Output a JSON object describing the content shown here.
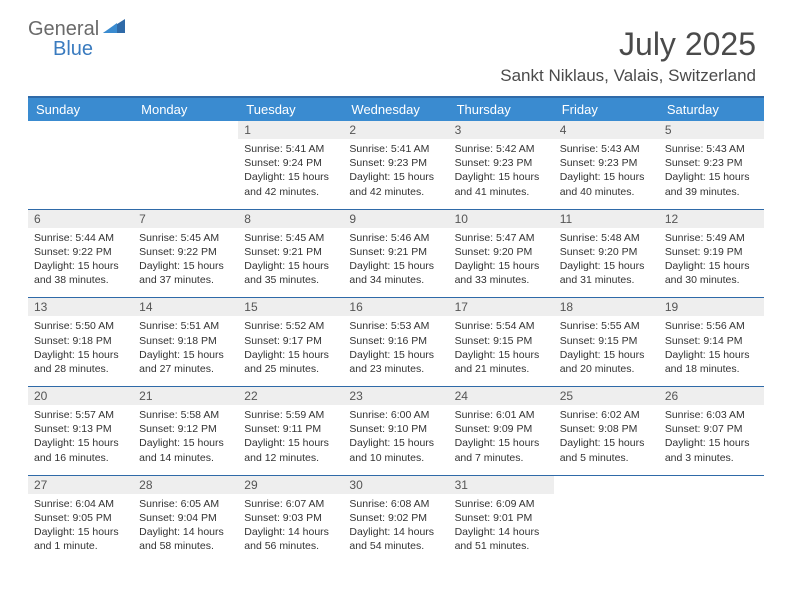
{
  "logo": {
    "text1": "General",
    "text2": "Blue"
  },
  "title": "July 2025",
  "subtitle": "Sankt Niklaus, Valais, Switzerland",
  "colors": {
    "header_bg": "#3a8bd0",
    "header_border": "#2f6aa8",
    "daynum_bg": "#eeeeee",
    "text": "#333333",
    "logo_gray": "#6a6a6a",
    "logo_blue": "#3a7bbf"
  },
  "weekdays": [
    "Sunday",
    "Monday",
    "Tuesday",
    "Wednesday",
    "Thursday",
    "Friday",
    "Saturday"
  ],
  "weeks": [
    [
      {
        "empty": true
      },
      {
        "empty": true
      },
      {
        "num": "1",
        "sunrise": "Sunrise: 5:41 AM",
        "sunset": "Sunset: 9:24 PM",
        "daylight": "Daylight: 15 hours and 42 minutes."
      },
      {
        "num": "2",
        "sunrise": "Sunrise: 5:41 AM",
        "sunset": "Sunset: 9:23 PM",
        "daylight": "Daylight: 15 hours and 42 minutes."
      },
      {
        "num": "3",
        "sunrise": "Sunrise: 5:42 AM",
        "sunset": "Sunset: 9:23 PM",
        "daylight": "Daylight: 15 hours and 41 minutes."
      },
      {
        "num": "4",
        "sunrise": "Sunrise: 5:43 AM",
        "sunset": "Sunset: 9:23 PM",
        "daylight": "Daylight: 15 hours and 40 minutes."
      },
      {
        "num": "5",
        "sunrise": "Sunrise: 5:43 AM",
        "sunset": "Sunset: 9:23 PM",
        "daylight": "Daylight: 15 hours and 39 minutes."
      }
    ],
    [
      {
        "num": "6",
        "sunrise": "Sunrise: 5:44 AM",
        "sunset": "Sunset: 9:22 PM",
        "daylight": "Daylight: 15 hours and 38 minutes."
      },
      {
        "num": "7",
        "sunrise": "Sunrise: 5:45 AM",
        "sunset": "Sunset: 9:22 PM",
        "daylight": "Daylight: 15 hours and 37 minutes."
      },
      {
        "num": "8",
        "sunrise": "Sunrise: 5:45 AM",
        "sunset": "Sunset: 9:21 PM",
        "daylight": "Daylight: 15 hours and 35 minutes."
      },
      {
        "num": "9",
        "sunrise": "Sunrise: 5:46 AM",
        "sunset": "Sunset: 9:21 PM",
        "daylight": "Daylight: 15 hours and 34 minutes."
      },
      {
        "num": "10",
        "sunrise": "Sunrise: 5:47 AM",
        "sunset": "Sunset: 9:20 PM",
        "daylight": "Daylight: 15 hours and 33 minutes."
      },
      {
        "num": "11",
        "sunrise": "Sunrise: 5:48 AM",
        "sunset": "Sunset: 9:20 PM",
        "daylight": "Daylight: 15 hours and 31 minutes."
      },
      {
        "num": "12",
        "sunrise": "Sunrise: 5:49 AM",
        "sunset": "Sunset: 9:19 PM",
        "daylight": "Daylight: 15 hours and 30 minutes."
      }
    ],
    [
      {
        "num": "13",
        "sunrise": "Sunrise: 5:50 AM",
        "sunset": "Sunset: 9:18 PM",
        "daylight": "Daylight: 15 hours and 28 minutes."
      },
      {
        "num": "14",
        "sunrise": "Sunrise: 5:51 AM",
        "sunset": "Sunset: 9:18 PM",
        "daylight": "Daylight: 15 hours and 27 minutes."
      },
      {
        "num": "15",
        "sunrise": "Sunrise: 5:52 AM",
        "sunset": "Sunset: 9:17 PM",
        "daylight": "Daylight: 15 hours and 25 minutes."
      },
      {
        "num": "16",
        "sunrise": "Sunrise: 5:53 AM",
        "sunset": "Sunset: 9:16 PM",
        "daylight": "Daylight: 15 hours and 23 minutes."
      },
      {
        "num": "17",
        "sunrise": "Sunrise: 5:54 AM",
        "sunset": "Sunset: 9:15 PM",
        "daylight": "Daylight: 15 hours and 21 minutes."
      },
      {
        "num": "18",
        "sunrise": "Sunrise: 5:55 AM",
        "sunset": "Sunset: 9:15 PM",
        "daylight": "Daylight: 15 hours and 20 minutes."
      },
      {
        "num": "19",
        "sunrise": "Sunrise: 5:56 AM",
        "sunset": "Sunset: 9:14 PM",
        "daylight": "Daylight: 15 hours and 18 minutes."
      }
    ],
    [
      {
        "num": "20",
        "sunrise": "Sunrise: 5:57 AM",
        "sunset": "Sunset: 9:13 PM",
        "daylight": "Daylight: 15 hours and 16 minutes."
      },
      {
        "num": "21",
        "sunrise": "Sunrise: 5:58 AM",
        "sunset": "Sunset: 9:12 PM",
        "daylight": "Daylight: 15 hours and 14 minutes."
      },
      {
        "num": "22",
        "sunrise": "Sunrise: 5:59 AM",
        "sunset": "Sunset: 9:11 PM",
        "daylight": "Daylight: 15 hours and 12 minutes."
      },
      {
        "num": "23",
        "sunrise": "Sunrise: 6:00 AM",
        "sunset": "Sunset: 9:10 PM",
        "daylight": "Daylight: 15 hours and 10 minutes."
      },
      {
        "num": "24",
        "sunrise": "Sunrise: 6:01 AM",
        "sunset": "Sunset: 9:09 PM",
        "daylight": "Daylight: 15 hours and 7 minutes."
      },
      {
        "num": "25",
        "sunrise": "Sunrise: 6:02 AM",
        "sunset": "Sunset: 9:08 PM",
        "daylight": "Daylight: 15 hours and 5 minutes."
      },
      {
        "num": "26",
        "sunrise": "Sunrise: 6:03 AM",
        "sunset": "Sunset: 9:07 PM",
        "daylight": "Daylight: 15 hours and 3 minutes."
      }
    ],
    [
      {
        "num": "27",
        "sunrise": "Sunrise: 6:04 AM",
        "sunset": "Sunset: 9:05 PM",
        "daylight": "Daylight: 15 hours and 1 minute."
      },
      {
        "num": "28",
        "sunrise": "Sunrise: 6:05 AM",
        "sunset": "Sunset: 9:04 PM",
        "daylight": "Daylight: 14 hours and 58 minutes."
      },
      {
        "num": "29",
        "sunrise": "Sunrise: 6:07 AM",
        "sunset": "Sunset: 9:03 PM",
        "daylight": "Daylight: 14 hours and 56 minutes."
      },
      {
        "num": "30",
        "sunrise": "Sunrise: 6:08 AM",
        "sunset": "Sunset: 9:02 PM",
        "daylight": "Daylight: 14 hours and 54 minutes."
      },
      {
        "num": "31",
        "sunrise": "Sunrise: 6:09 AM",
        "sunset": "Sunset: 9:01 PM",
        "daylight": "Daylight: 14 hours and 51 minutes."
      },
      {
        "empty": true
      },
      {
        "empty": true
      }
    ]
  ]
}
